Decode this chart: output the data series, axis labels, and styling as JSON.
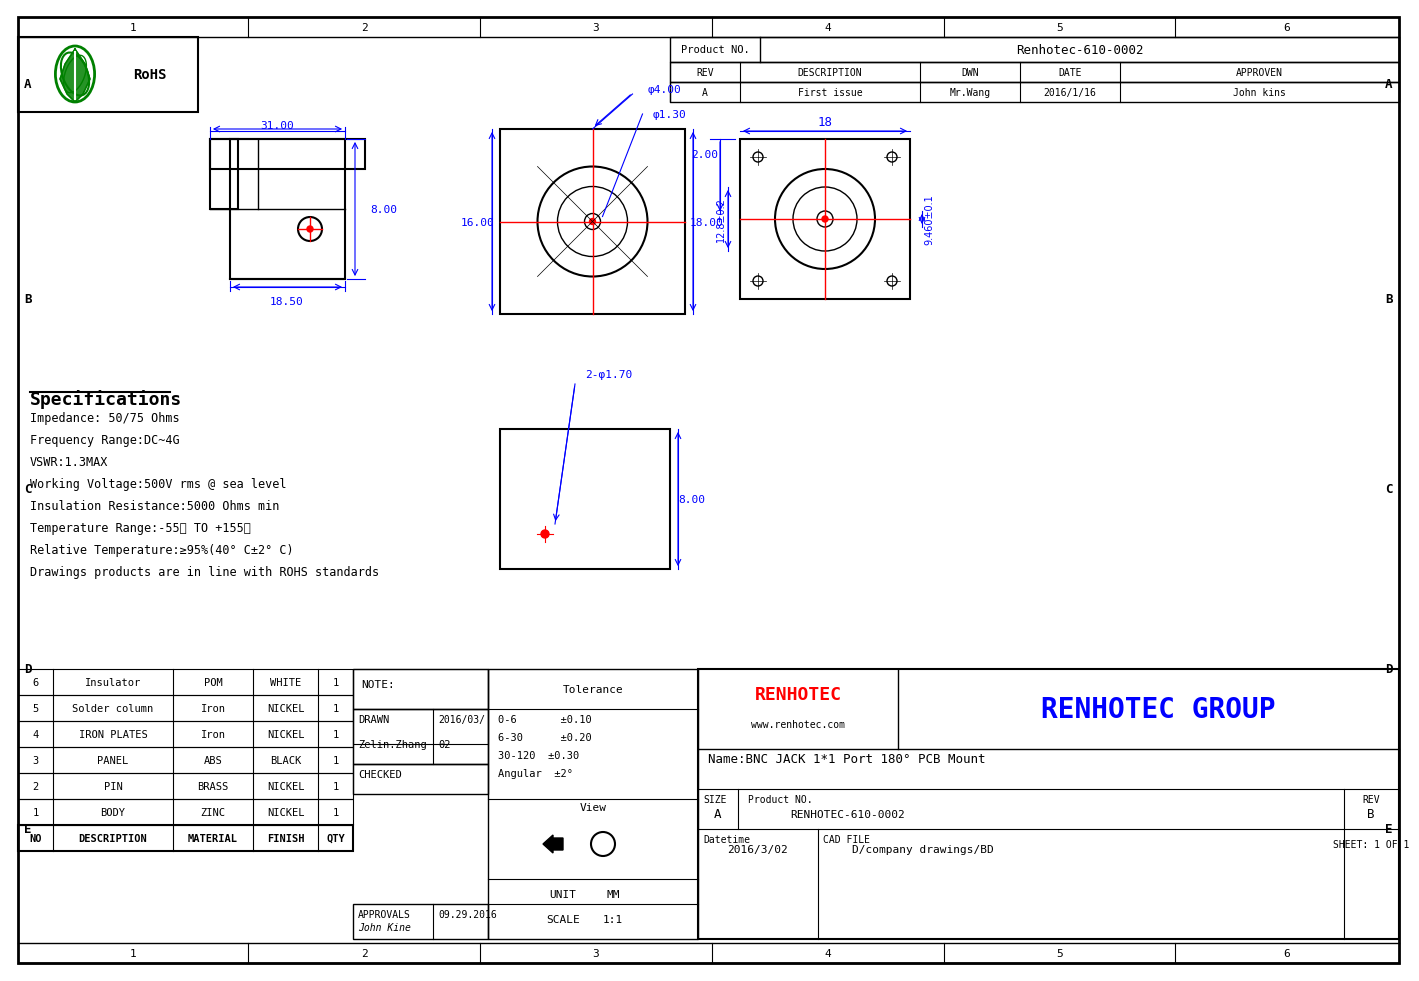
{
  "title": "BNC JACK 1*1 Port 180 PCB Mount Technical Drawing",
  "border_color": "#000000",
  "bg_color": "#ffffff",
  "blue_dim": "#0000FF",
  "red_color": "#FF0000",
  "green_color": "#008000",
  "header_columns": [
    "1",
    "2",
    "3",
    "4",
    "5",
    "6"
  ],
  "row_labels": [
    "A",
    "B",
    "C",
    "D",
    "E"
  ],
  "product_no": "Renhotec-610-0002",
  "rev_row": [
    "A",
    "First issue",
    "Mr.Wang",
    "2016/1/16",
    "John kins"
  ],
  "specs_title": "Specifications",
  "specs": [
    "Impedance: 50/75 Ohms",
    "Frequency Range:DC~4G",
    "VSWR:1.3MAX",
    "Working Voltage:500V rms @ sea level",
    "Insulation Resistance:5000 Ohms min",
    "Temperature Range:-55℃ TO +155℃",
    "Relative Temperature:≥95%(40° C±2° C)",
    "Drawings products are in line with ROHS standards"
  ],
  "bom_headers": [
    "NO",
    "DESCRIPTION",
    "MATERIAL",
    "FINISH",
    "QTY"
  ],
  "bom_rows": [
    [
      "1",
      "BODY",
      "ZINC",
      "NICKEL",
      "1"
    ],
    [
      "2",
      "PIN",
      "BRASS",
      "NICKEL",
      "1"
    ],
    [
      "3",
      "PANEL",
      "ABS",
      "BLACK",
      "1"
    ],
    [
      "4",
      "IRON PLATES",
      "Iron",
      "NICKEL",
      "1"
    ],
    [
      "5",
      "Solder column",
      "Iron",
      "NICKEL",
      "1"
    ],
    [
      "6",
      "Insulator",
      "POM",
      "WHITE",
      "1"
    ]
  ],
  "note_label": "NOTE:",
  "tolerance_label": "Tolerance",
  "tolerance_rows": [
    "0-6       ±0.10",
    "6-30      ±0.20",
    "30-120  ±0.30",
    "Angular  ±2°"
  ],
  "drawn_label": "DRAWN",
  "drawn_date": "2016/03/",
  "drawn_by": "Zelin.Zhang",
  "drawn_date2": "02",
  "checked_label": "CHECKED",
  "approvals_label": "APPROVALS",
  "approvals_sig": "John Kine",
  "approvals_date": "09.29.2016",
  "view_label": "View",
  "unit_label": "UNIT",
  "unit_value": "MM",
  "scale_label": "SCALE",
  "scale_value": "1:1",
  "company_name": "RENHOTEC GROUP",
  "company_web": "www.renhotec.com",
  "name_label": "Name:BNC JACK 1*1 Port 180° PCB Mount",
  "size_label": "SIZE",
  "size_value": "A",
  "product_no2": "RENHOTEC-610-0002",
  "datetime_label": "Datetime",
  "datetime_value": "2016/3/02",
  "cad_file_label": "CAD FILE",
  "cad_file_value": "D/company drawings/BD",
  "sheet_label": "SHEET: 1 OF 1",
  "rev_label": "REV",
  "rev_value": "B",
  "dim_31": "31.00",
  "dim_8": "8.00",
  "dim_1850": "18.50",
  "dim_4": "φ4.00",
  "dim_130": "φ1.30",
  "dim_16": "16.00",
  "dim_18v": "18.00",
  "dim_18h": "18",
  "dim_200": "2.00",
  "dim_128": "12.8±0.2",
  "dim_9460": "9.460±0.1",
  "dim_170": "2-φ1.70",
  "dim_8v": "8.00"
}
